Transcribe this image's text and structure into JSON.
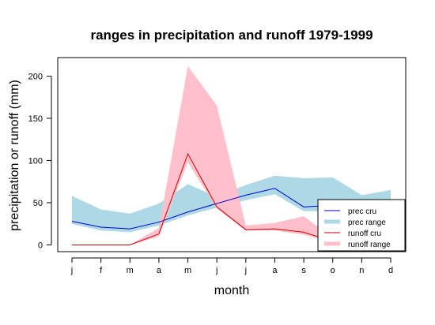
{
  "chart_data": {
    "type": "line",
    "title": "ranges in precipitation and runoff 1979-1999",
    "xlabel": "month",
    "ylabel": "precipitation or runoff (mm)",
    "categories": [
      "j",
      "f",
      "m",
      "a",
      "m",
      "j",
      "j",
      "a",
      "s",
      "o",
      "n",
      "d"
    ],
    "ylim": [
      -8,
      222
    ],
    "yticks": [
      0,
      50,
      100,
      150,
      200
    ],
    "ytick_labels": [
      "0",
      "50",
      "100",
      "150",
      "200"
    ],
    "grid": false,
    "legend_position": "bottom-right",
    "series": [
      {
        "name": "prec cru",
        "kind": "line",
        "color": "#0000cd",
        "values": [
          28,
          21,
          19,
          27,
          39,
          49,
          59,
          67,
          45,
          47,
          47,
          52
        ]
      },
      {
        "name": "prec range",
        "kind": "range",
        "color": "#add8e6",
        "lower": [
          25,
          17,
          15,
          23,
          35,
          44,
          53,
          60,
          40,
          40,
          42,
          47
        ],
        "upper": [
          58,
          42,
          37,
          49,
          72,
          57,
          71,
          82,
          79,
          80,
          59,
          65
        ]
      },
      {
        "name": "runoff cru",
        "kind": "line",
        "color": "#cc0000",
        "values": [
          0,
          0,
          0,
          13,
          108,
          45,
          18,
          19,
          15,
          4,
          2,
          2
        ]
      },
      {
        "name": "runoff range",
        "kind": "range",
        "color": "#ffc0cb",
        "lower": [
          0,
          0,
          0,
          10,
          98,
          43,
          17,
          17,
          12,
          3,
          1,
          1
        ],
        "upper": [
          0,
          0,
          0,
          20,
          212,
          165,
          23,
          26,
          34,
          8,
          3,
          3
        ]
      }
    ]
  }
}
